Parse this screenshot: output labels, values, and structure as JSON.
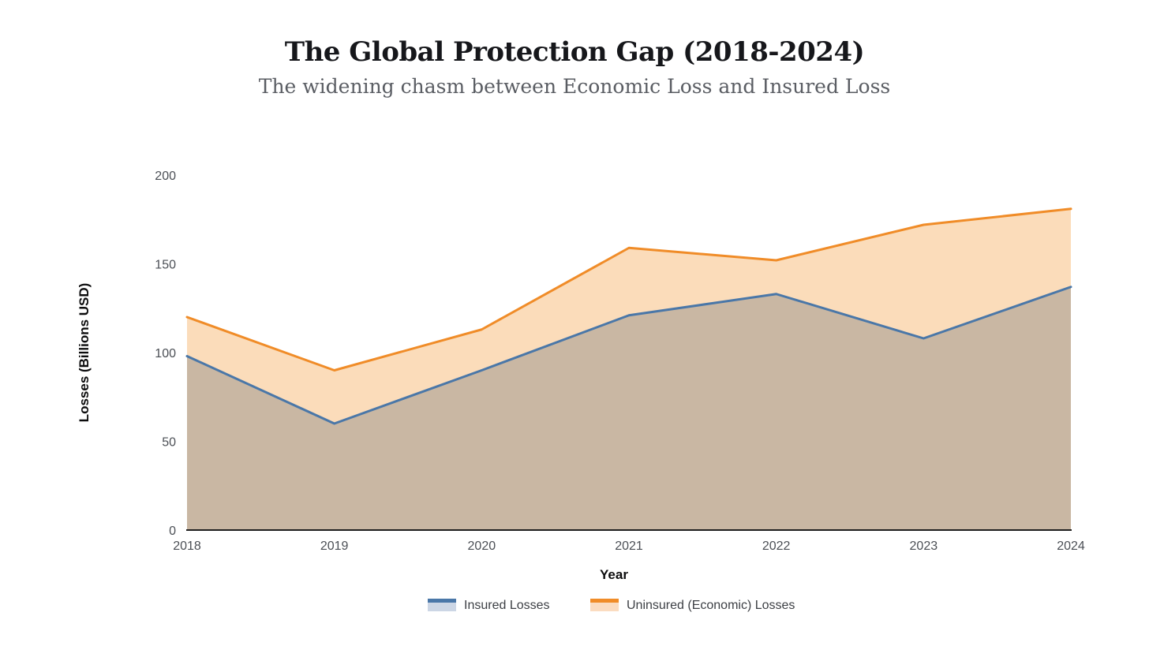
{
  "title": "The Global Protection Gap (2018-2024)",
  "subtitle": "The widening chasm between Economic Loss and Insured Loss",
  "chart_data": {
    "type": "area",
    "x": [
      2018,
      2019,
      2020,
      2021,
      2022,
      2023,
      2024
    ],
    "series": [
      {
        "name": "Insured Losses",
        "values": [
          98,
          60,
          90,
          121,
          133,
          108,
          137
        ],
        "line_color": "#4a77a8",
        "fill_color": "#c9b7a3",
        "legend_fill": "#ccd6e5"
      },
      {
        "name": "Uninsured (Economic) Losses",
        "values": [
          120,
          90,
          113,
          159,
          152,
          172,
          181
        ],
        "line_color": "#f08c28",
        "fill_color": "#fbdcba",
        "legend_fill": "#fbdcc0"
      }
    ],
    "xlabel": "Year",
    "ylabel": "Losses (Billions USD)",
    "ylim": [
      0,
      200
    ],
    "yticks": [
      0,
      50,
      100,
      150,
      200
    ],
    "grid": false,
    "legend_position": "bottom",
    "axis_line_color": "#1f1f1f",
    "tick_label_color": "#4b4f55",
    "title_color": "#16171b",
    "subtitle_color": "#5a5d63"
  }
}
